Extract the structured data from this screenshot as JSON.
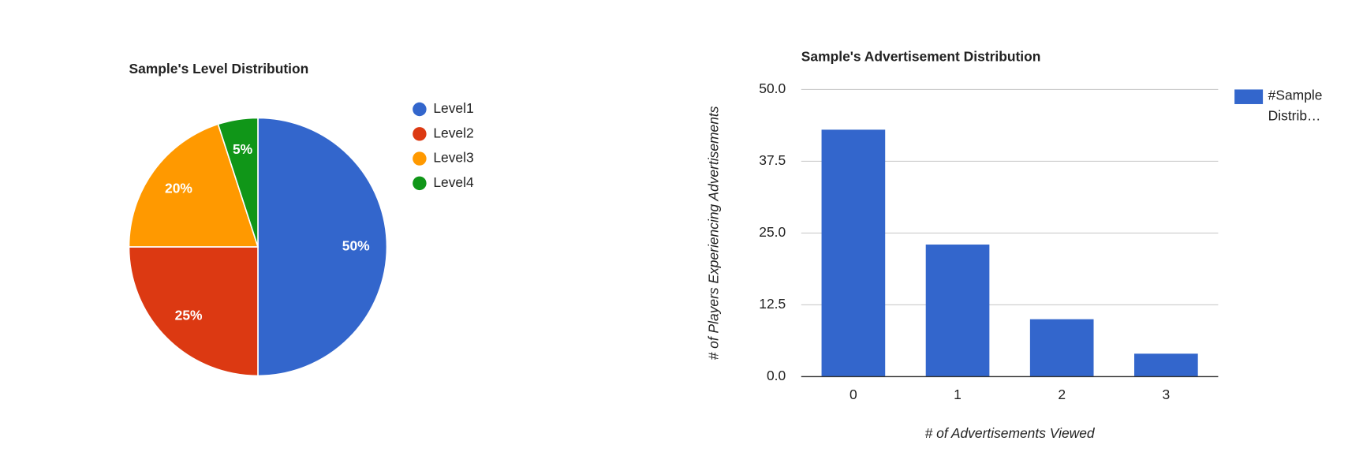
{
  "chart_data": [
    {
      "type": "pie",
      "title": "Sample's Level Distribution",
      "categories": [
        "Level1",
        "Level2",
        "Level3",
        "Level4"
      ],
      "values": [
        50,
        25,
        20,
        5
      ],
      "value_labels": [
        "50%",
        "25%",
        "20%",
        "5%"
      ],
      "colors": [
        "#3366cc",
        "#dc3912",
        "#ff9900",
        "#109618"
      ],
      "legend": "right"
    },
    {
      "type": "bar",
      "title": "Sample's Advertisement Distribution",
      "x_label": "# of Advertisements Viewed",
      "y_label": "# of Players Experiencing Advertisements",
      "categories": [
        "0",
        "1",
        "2",
        "3"
      ],
      "series": [
        {
          "name": "#Sample Distrib…",
          "color": "#3366cc",
          "values": [
            43,
            23,
            10,
            4
          ]
        }
      ],
      "ylim": [
        0,
        50
      ],
      "yticks": [
        {
          "value": 0,
          "label": "0.0"
        },
        12.5,
        {
          "value": 25,
          "label": "25.0"
        },
        37.5,
        {
          "value": 50,
          "label": "50.0"
        }
      ],
      "grid": true,
      "legend": "right"
    }
  ]
}
